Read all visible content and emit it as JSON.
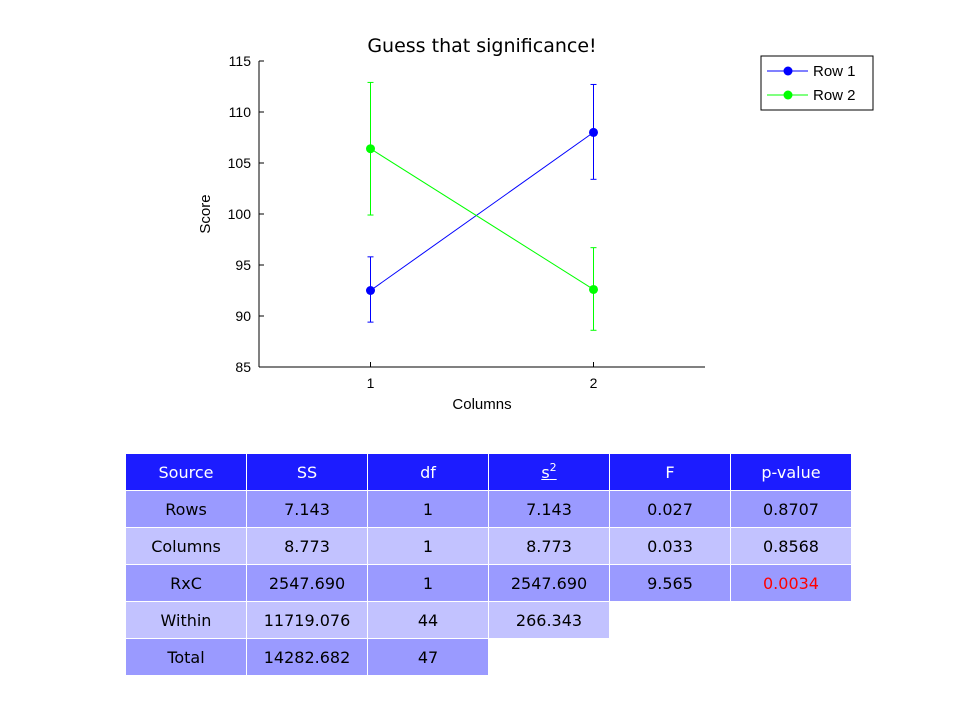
{
  "chart_data": {
    "type": "line",
    "title": "Guess that significance!",
    "xlabel": "Columns",
    "ylabel": "Score",
    "x": [
      1,
      2
    ],
    "xlim": [
      0.5,
      2.5
    ],
    "ylim": [
      85,
      115
    ],
    "xticks": [
      "1",
      "2"
    ],
    "yticks": [
      "85",
      "90",
      "95",
      "100",
      "105",
      "110",
      "115"
    ],
    "grid": false,
    "legend_position": "top-right",
    "series": [
      {
        "name": "Row 1",
        "color": "#0000ff",
        "values": [
          92.5,
          108.0
        ],
        "err_low": [
          89.4,
          103.4
        ],
        "err_high": [
          95.8,
          112.7
        ]
      },
      {
        "name": "Row 2",
        "color": "#00ff00",
        "values": [
          106.4,
          92.6
        ],
        "err_low": [
          99.9,
          88.6
        ],
        "err_high": [
          112.9,
          96.7
        ]
      }
    ]
  },
  "table": {
    "headers": [
      "Source",
      "SS",
      "df",
      "s",
      "F",
      "p-value"
    ],
    "s2_superscript": "2",
    "rows": [
      {
        "cells": [
          "Rows",
          "7.143",
          "1",
          "7.143",
          "0.027",
          "0.8707"
        ]
      },
      {
        "cells": [
          "Columns",
          "8.773",
          "1",
          "8.773",
          "0.033",
          "0.8568"
        ]
      },
      {
        "cells": [
          "RxC",
          "2547.690",
          "1",
          "2547.690",
          "9.565",
          "0.0034"
        ],
        "significant_color": "#ff0000"
      },
      {
        "cells": [
          "Within",
          "11719.076",
          "44",
          "266.343"
        ]
      },
      {
        "cells": [
          "Total",
          "14282.682",
          "47"
        ]
      }
    ]
  }
}
